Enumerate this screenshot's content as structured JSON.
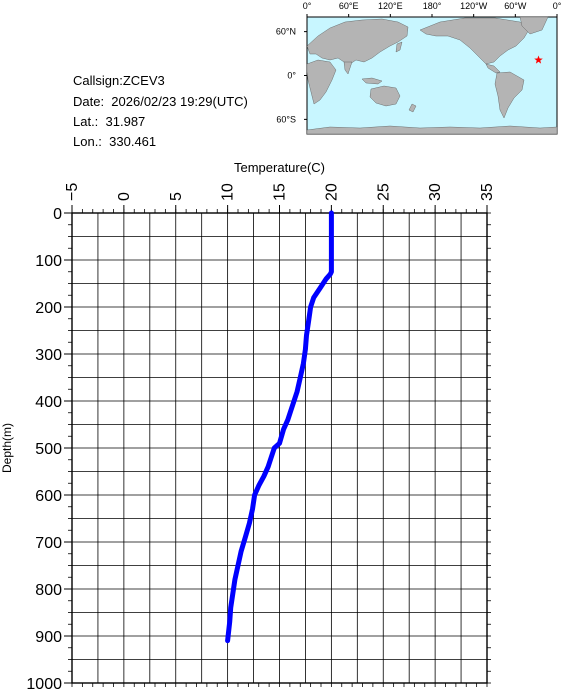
{
  "info": {
    "callsign": "Callsign:ZCEV3",
    "date": "Date:  2026/02/23 19:29(UTC)",
    "lat": "Lat.:  31.987",
    "lon": "Lon.:  330.461"
  },
  "map": {
    "top_labels": [
      "0°",
      "60°E",
      "120°E",
      "180°",
      "120°W",
      "60°W",
      "0°"
    ],
    "left_labels": [
      "60°N",
      "0°",
      "60°S"
    ],
    "ocean_color": "#c8f6ff",
    "land_color": "#b4b4b4",
    "marker_color": "#ff0000",
    "marker_icon": "star-icon"
  },
  "chart_data": {
    "type": "line",
    "xlabel": "Temperature(C)",
    "ylabel": "Depth(m)",
    "xlim": [
      -5,
      35
    ],
    "ylim": [
      0,
      1000
    ],
    "y_inverted": true,
    "x_axis_position": "top",
    "x_ticks": [
      -5,
      0,
      5,
      10,
      15,
      20,
      25,
      30,
      35
    ],
    "y_ticks": [
      0,
      100,
      200,
      300,
      400,
      500,
      600,
      700,
      800,
      900,
      1000
    ],
    "grid": true,
    "series": [
      {
        "color": "#0000ff",
        "x": [
          20.0,
          20.0,
          19.9,
          19.5,
          18.9,
          18.3,
          18.0,
          17.8,
          17.6,
          17.5,
          17.3,
          17.0,
          16.7,
          16.4,
          16.1,
          15.8,
          15.4,
          15.0,
          14.5,
          14.2,
          13.9,
          13.5,
          13.0,
          12.6,
          12.4,
          12.1,
          11.7,
          11.3,
          11.0,
          10.7,
          10.5,
          10.3,
          10.2,
          10.0
        ],
        "y": [
          0,
          125,
          130,
          140,
          160,
          180,
          200,
          230,
          260,
          290,
          320,
          350,
          380,
          400,
          420,
          440,
          460,
          490,
          500,
          520,
          540,
          560,
          580,
          600,
          630,
          660,
          690,
          720,
          750,
          780,
          810,
          840,
          870,
          910
        ]
      }
    ]
  }
}
